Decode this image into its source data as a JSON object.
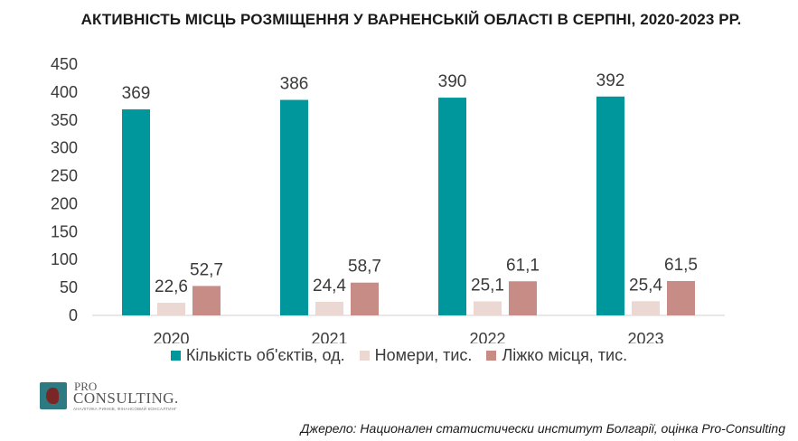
{
  "chart_data": {
    "type": "bar",
    "title": "АКТИВНІСТЬ МІСЦЬ РОЗМІЩЕННЯ У ВАРНЕНСЬКІЙ ОБЛАСТІ В СЕРПНІ, 2020-2023 РР.",
    "xlabel": "",
    "ylabel": "",
    "categories": [
      "2020",
      "2021",
      "2022",
      "2023"
    ],
    "ylim": [
      0,
      450
    ],
    "yticks": [
      "0",
      "50",
      "100",
      "150",
      "200",
      "250",
      "300",
      "350",
      "400",
      "450"
    ],
    "grid": false,
    "legend_position": "bottom",
    "series": [
      {
        "name": "Кількість об'єктів, од.",
        "values": [
          369,
          386,
          390,
          392
        ],
        "labels": [
          "369",
          "386",
          "390",
          "392"
        ],
        "color": "#00979c"
      },
      {
        "name": "Номери, тис.",
        "values": [
          22.6,
          24.4,
          25.1,
          25.4
        ],
        "labels": [
          "22,6",
          "24,4",
          "25,1",
          "25,4"
        ],
        "color": "#ebd8d2"
      },
      {
        "name": "Ліжко місця, тис.",
        "values": [
          52.7,
          58.7,
          61.1,
          61.5
        ],
        "labels": [
          "52,7",
          "58,7",
          "61,1",
          "61,5"
        ],
        "color": "#c88c87"
      }
    ]
  },
  "logo": {
    "pro": "PRO",
    "consulting": "CONSULTING.",
    "tagline": "АНАЛІТИКА РИНКІВ, ФІНАНСОВИЙ КОНСАЛТИНГ"
  },
  "source": "Джерело: Национален статистически институт Болгарії, оцінка Pro-Consulting"
}
